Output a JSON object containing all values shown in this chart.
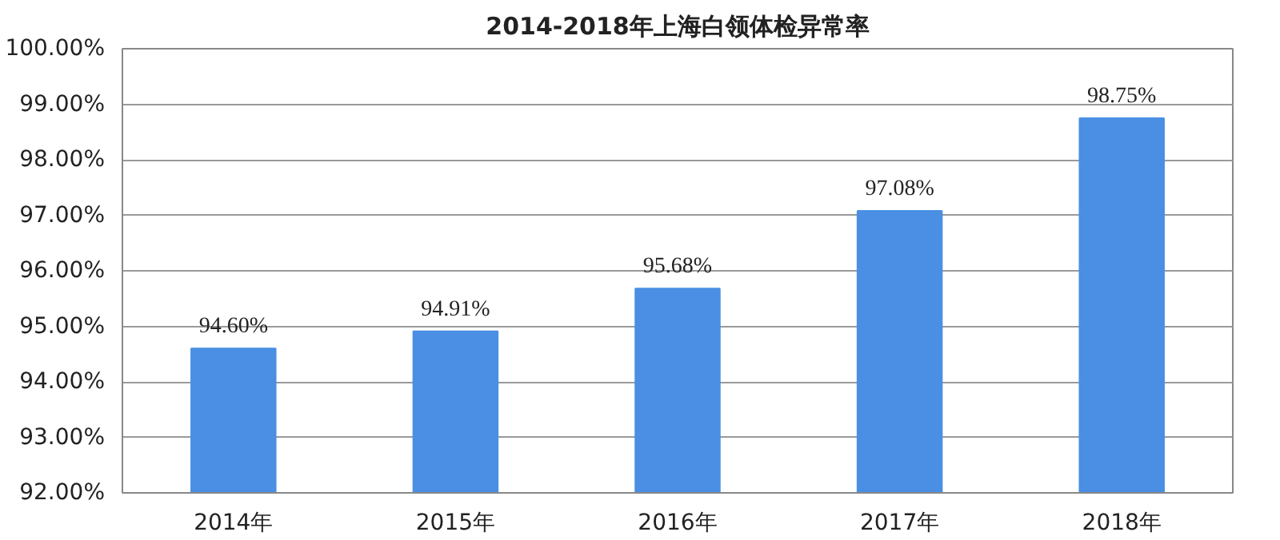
{
  "chart_data": {
    "type": "bar",
    "title": "2014-2018年上海白领体检异常率",
    "categories": [
      "2014年",
      "2015年",
      "2016年",
      "2017年",
      "2018年"
    ],
    "values": [
      94.6,
      94.91,
      95.68,
      97.08,
      98.75
    ],
    "value_labels": [
      "94.60%",
      "94.91%",
      "95.68%",
      "97.08%",
      "98.75%"
    ],
    "color": "#4a8fe3",
    "ylim": [
      92,
      100
    ],
    "yticks": [
      {
        "value": 92,
        "label": "92.00%"
      },
      {
        "value": 93,
        "label": "93.00%"
      },
      {
        "value": 94,
        "label": "94.00%"
      },
      {
        "value": 95,
        "label": "95.00%"
      },
      {
        "value": 96,
        "label": "96.00%"
      },
      {
        "value": 97,
        "label": "97.00%"
      },
      {
        "value": 98,
        "label": "98.00%"
      },
      {
        "value": 99,
        "label": "99.00%"
      },
      {
        "value": 100,
        "label": "100.00%"
      }
    ],
    "grid": "y"
  }
}
